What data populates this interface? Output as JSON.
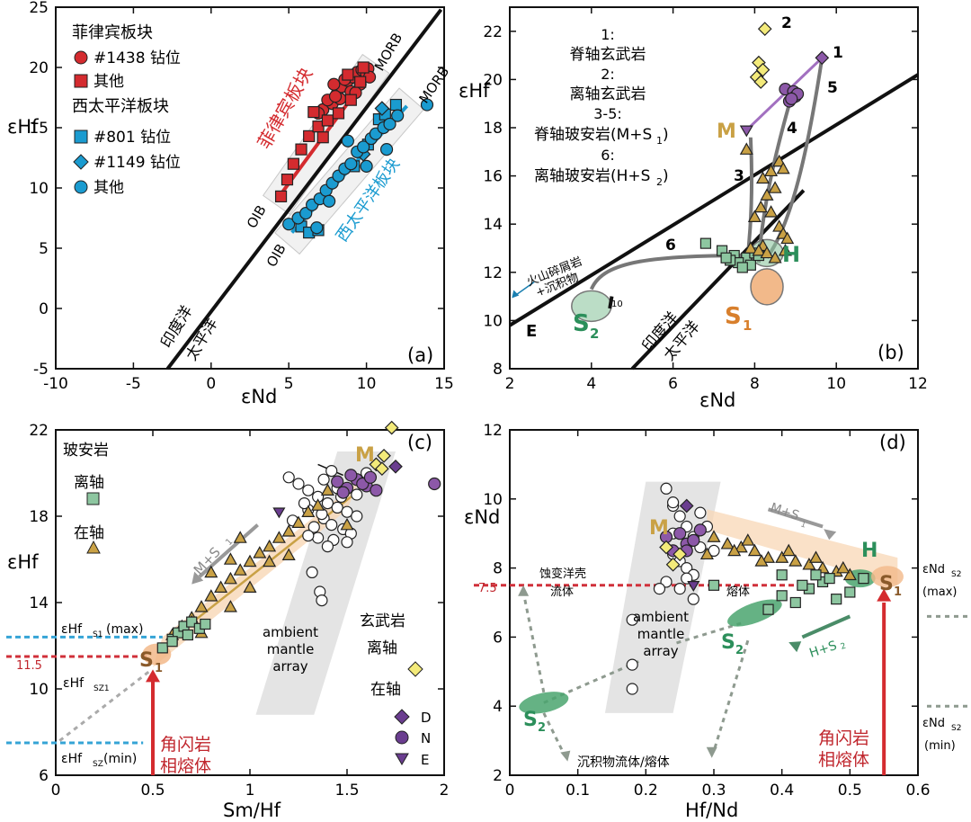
{
  "colors": {
    "axis": "#111111",
    "red": "#d42b2f",
    "red_dark": "#8a1418",
    "blue": "#1a9bd0",
    "blue_dark": "#0d5f84",
    "green": "#2c8f5b",
    "green_fill": "#8dc6a0",
    "tan": "#c9a145",
    "orange": "#f2b98a",
    "purple": "#6a3d8f",
    "purple_fill": "#8c58a8",
    "yellow": "#f3ea7a",
    "gray": "#9a9a9a",
    "white": "#ffffff",
    "dashed_red": "#d0303a",
    "dashed_blue": "#35a4d6",
    "dashed_gray": "#8e9a8f",
    "band_gray": "#e4e4e4",
    "band_orange": "#f8d7b5"
  },
  "chart_data": [
    {
      "id": "a",
      "type": "scatter",
      "panel_label": "(a)",
      "xlabel": "εNd",
      "ylabel": "εHf",
      "xlim": [
        -10,
        15
      ],
      "ylim": [
        -5,
        25
      ],
      "xticks": [
        "-10",
        "-5",
        "0",
        "5",
        "10",
        "15"
      ],
      "yticks": [
        "-5",
        "0",
        "5",
        "10",
        "15",
        "20",
        "25"
      ],
      "legend": {
        "group1_title": "菲律宾板块",
        "group1_items": [
          "#1438 钻位",
          "其他"
        ],
        "group2_title": "西太平洋板块",
        "group2_items": [
          "#801 钻位",
          "#1149 钻位",
          "其他"
        ]
      },
      "labels": {
        "indian": "印度洋",
        "pacific": "太平洋",
        "morb_upper": "MORB",
        "morb_lower": "MORB",
        "oib_upper": "OIB",
        "oib_lower": "OIB",
        "ph_plate": "菲律宾板块",
        "wp_plate": "西太平洋板块"
      },
      "boundary_line": {
        "x": [
          -2.8,
          14.8
        ],
        "y": [
          -5,
          24.8
        ]
      },
      "ph_trend": {
        "x": [
          4.5,
          10.2
        ],
        "y": [
          9.5,
          19.5
        ]
      },
      "wp_trend": {
        "x": [
          5.2,
          12.6
        ],
        "y": [
          6.3,
          16.8
        ]
      },
      "series": [
        {
          "name": "#1438 钻位",
          "marker": "circle",
          "color": "red",
          "x": [
            7.2,
            7.8,
            8.1,
            8.4,
            8.8,
            9.1,
            9.4,
            9.7,
            10.0,
            7.5,
            8.3,
            9.0,
            9.6,
            10.1,
            8.6,
            7.9,
            9.3,
            10.2,
            6.9,
            8.0
          ],
          "y": [
            16.5,
            17.0,
            17.8,
            18.4,
            18.9,
            19.2,
            19.6,
            19.8,
            19.5,
            17.3,
            17.4,
            18.0,
            18.6,
            19.9,
            19.0,
            18.6,
            17.9,
            19.2,
            16.2,
            17.6
          ]
        },
        {
          "name": "其他(PH)",
          "marker": "square",
          "color": "red",
          "x": [
            4.5,
            4.9,
            5.3,
            5.8,
            6.3,
            6.9,
            7.5,
            8.2,
            9.0,
            9.6,
            7.2,
            6.6,
            8.8,
            9.8
          ],
          "y": [
            9.3,
            10.7,
            12.0,
            13.2,
            14.3,
            15.1,
            15.6,
            16.2,
            17.3,
            18.8,
            14.2,
            16.3,
            19.4,
            20.0
          ]
        },
        {
          "name": "#801 钻位",
          "marker": "square",
          "color": "blue",
          "x": [
            5.8,
            6.3,
            6.9,
            9.2,
            10.1,
            10.8,
            11.2,
            11.9
          ],
          "y": [
            6.8,
            6.3,
            6.5,
            11.8,
            13.6,
            15.7,
            16.1,
            16.9
          ]
        },
        {
          "name": "#1149 钻位",
          "marker": "diamond",
          "color": "blue",
          "x": [
            9.8,
            10.4,
            11.0
          ],
          "y": [
            12.8,
            14.2,
            16.6
          ]
        },
        {
          "name": "其他(WP)",
          "marker": "circle",
          "color": "blue",
          "x": [
            5.0,
            5.6,
            6.1,
            6.5,
            7.0,
            7.4,
            7.8,
            8.2,
            8.6,
            9.0,
            9.4,
            9.8,
            10.3,
            10.6,
            11.1,
            11.5,
            12.0,
            13.9,
            6.8,
            7.6,
            8.8,
            10.0,
            11.3
          ],
          "y": [
            7.0,
            7.5,
            7.9,
            8.6,
            9.1,
            9.8,
            10.4,
            11.0,
            11.6,
            12.0,
            13.0,
            13.4,
            14.1,
            14.5,
            15.0,
            15.3,
            16.0,
            16.9,
            6.7,
            8.9,
            13.9,
            11.8,
            13.2
          ]
        }
      ]
    },
    {
      "id": "b",
      "type": "scatter",
      "panel_label": "(b)",
      "xlabel": "εNd",
      "ylabel": "εHf",
      "xlim": [
        2,
        12
      ],
      "ylim": [
        8,
        23
      ],
      "xticks": [
        "2",
        "4",
        "6",
        "8",
        "10",
        "12"
      ],
      "yticks": [
        "8",
        "10",
        "12",
        "14",
        "16",
        "18",
        "20",
        "22"
      ],
      "legend_lines": [
        "1:",
        "脊轴玄武岩",
        "2:",
        "离轴玄武岩",
        "3-5:",
        "脊轴玻安岩(M+S",
        "6:",
        "离轴玻安岩(H+S"
      ],
      "subscript": "1",
      "subscript2": "2",
      "close_paren": ")",
      "labels": {
        "indian": "印度洋",
        "pacific": "太平洋",
        "volcanic": "火山碎屑岩",
        "sediment": "+沉积物",
        "E": "E",
        "M": "M",
        "H": "H",
        "S": "S",
        "tick10": "10",
        "curve_ids": [
          "1",
          "2",
          "3",
          "4",
          "5",
          "6"
        ]
      },
      "boundary_line": {
        "x": [
          2,
          12
        ],
        "y": [
          9.8,
          20.2
        ]
      },
      "boundary2": {
        "x": [
          5.0,
          9.2
        ],
        "y": [
          8,
          15.4
        ]
      },
      "points": {
        "yellow_diamonds": {
          "x": [
            8.25,
            8.1,
            8.2,
            8.05,
            8.15
          ],
          "y": [
            22.1,
            20.7,
            20.4,
            20.1,
            19.9
          ]
        },
        "purple_circles": {
          "x": [
            8.75,
            8.95,
            9.0,
            8.85,
            9.05,
            8.9
          ],
          "y": [
            19.6,
            19.5,
            19.3,
            19.1,
            19.4,
            19.2
          ]
        },
        "tri_up": {
          "x": [
            7.8,
            8.6,
            8.7,
            8.4,
            8.2,
            8.5,
            8.3,
            8.15,
            8.0,
            8.4,
            8.6,
            8.7,
            8.8,
            8.2,
            7.9,
            8.1,
            8.3,
            8.5,
            8.75
          ],
          "y": [
            17.1,
            16.6,
            16.3,
            16.2,
            15.9,
            15.5,
            15.2,
            14.7,
            14.3,
            14.5,
            13.9,
            13.6,
            13.4,
            13.1,
            13.0,
            12.9,
            12.8,
            12.6,
            12.9
          ]
        },
        "squares": {
          "x": [
            6.8,
            7.2,
            7.5,
            7.8,
            7.6,
            7.9,
            8.0,
            7.4,
            7.7,
            8.1,
            7.3
          ],
          "y": [
            13.2,
            12.9,
            12.7,
            12.6,
            12.4,
            12.3,
            12.8,
            12.5,
            12.2,
            12.7,
            12.6
          ]
        },
        "tri_down_M": {
          "x": [
            7.8
          ],
          "y": [
            17.9
          ]
        },
        "diamond_1": {
          "x": [
            9.65
          ],
          "y": [
            20.9
          ]
        }
      }
    },
    {
      "id": "c",
      "type": "scatter",
      "panel_label": "(c)",
      "xlabel": "Sm/Hf",
      "ylabel": "εHf",
      "xlim": [
        0,
        2
      ],
      "ylim": [
        6,
        22
      ],
      "xticks": [
        "0",
        "0.5",
        "1",
        "1.5",
        "2"
      ],
      "yticks": [
        "6",
        "10",
        "14",
        "18",
        "22"
      ],
      "legend": {
        "title_bon": "玻安岩",
        "off_axis": "离轴",
        "on_axis": "在轴",
        "title_basalt": "玄武岩",
        "basalt_off": "离轴",
        "basalt_on": "在轴",
        "D": "D",
        "N": "N",
        "E": "E"
      },
      "labels": {
        "MS1": "M+S",
        "M": "M",
        "S1": "S",
        "ambient": [
          "ambient",
          "mantle",
          "array"
        ],
        "hornblende": [
          "角闪岩",
          "相熔体"
        ],
        "hf_s1_max": "εHf",
        "hf_s1_max_sub": "S1",
        "hf_s1_max_suffix": "(max)",
        "hf_sz1": "εHf",
        "hf_sz1_sub": "SZ1",
        "hf_sz_min": "εHf",
        "hf_sz_min_sub": "SZ",
        "hf_sz_min_suffix": "(min)",
        "val_115": "11.5"
      },
      "points": {
        "open_circles": {
          "x": [
            1.2,
            1.25,
            1.3,
            1.35,
            1.4,
            1.45,
            1.5,
            1.55,
            1.3,
            1.38,
            1.42,
            1.48,
            1.52,
            1.33,
            1.43,
            1.35,
            1.4,
            1.5,
            1.47,
            1.38,
            1.28,
            1.45,
            1.55,
            1.6,
            1.22,
            1.3,
            1.37,
            1.42,
            1.36,
            1.37,
            1.32
          ],
          "y": [
            19.8,
            19.5,
            19.2,
            18.9,
            18.6,
            18.4,
            18.2,
            18.0,
            18.3,
            17.9,
            17.6,
            17.4,
            17.2,
            17.5,
            16.9,
            17.0,
            16.6,
            16.8,
            18.9,
            19.7,
            18.6,
            19.3,
            19.0,
            20.0,
            17.8,
            17.1,
            18.1,
            20.1,
            14.5,
            14.1,
            15.4
          ]
        },
        "triangles": {
          "x": [
            0.6,
            0.65,
            0.7,
            0.75,
            0.8,
            0.85,
            0.9,
            0.95,
            1.0,
            1.05,
            1.1,
            1.15,
            1.2,
            1.25,
            1.3,
            1.35,
            0.9,
            1.0,
            1.1,
            0.8,
            0.7,
            1.2,
            1.5,
            0.75,
            0.9,
            0.95,
            1.4
          ],
          "y": [
            12.5,
            12.9,
            13.3,
            13.8,
            14.3,
            14.7,
            15.1,
            15.5,
            15.9,
            16.3,
            16.6,
            17.0,
            17.3,
            17.7,
            18.2,
            18.5,
            13.8,
            14.7,
            15.9,
            15.4,
            13.1,
            16.2,
            17.6,
            12.6,
            16.0,
            17.0,
            19.2
          ]
        },
        "squares": {
          "x": [
            0.55,
            0.6,
            0.63,
            0.66,
            0.7,
            0.74,
            0.77,
            0.6,
            0.68
          ],
          "y": [
            11.9,
            12.3,
            12.6,
            12.9,
            13.1,
            12.8,
            13.0,
            12.2,
            12.5
          ]
        },
        "yellow_diamonds": {
          "x": [
            1.73,
            1.69,
            1.65,
            1.68
          ],
          "y": [
            22.1,
            20.8,
            20.4,
            20.2
          ]
        },
        "purple_D": {
          "x": [
            1.75
          ],
          "y": [
            20.3
          ]
        },
        "purple_N": {
          "x": [
            1.45,
            1.5,
            1.55,
            1.6,
            1.65,
            1.52,
            1.58,
            1.48,
            1.62,
            1.95
          ],
          "y": [
            19.6,
            19.3,
            19.7,
            19.4,
            19.2,
            19.9,
            19.5,
            19.1,
            19.8,
            19.5
          ]
        },
        "purple_E": {
          "x": [
            1.15
          ],
          "y": [
            18.2
          ]
        }
      },
      "yellow_line": {
        "x": [
          0.58,
          1.52
        ],
        "y": [
          12.2,
          18.9
        ]
      },
      "dashed_levels": {
        "hf_s1_max": 12.4,
        "hf_sz1": 11.5,
        "hf_sz_min": 7.5
      }
    },
    {
      "id": "d",
      "type": "scatter",
      "panel_label": "(d)",
      "xlabel": "Hf/Nd",
      "ylabel": "εNd",
      "xlim": [
        0,
        0.6
      ],
      "ylim": [
        2,
        12
      ],
      "xticks": [
        "0",
        "0.1",
        "0.2",
        "0.3",
        "0.4",
        "0.5",
        "0.6"
      ],
      "yticks": [
        "2",
        "4",
        "6",
        "8",
        "10",
        "12"
      ],
      "labels": {
        "alt_crust": "蚀变洋壳",
        "fluid": "流体",
        "melt": "熔体",
        "val_75": "7.5",
        "ambient": [
          "ambient",
          "mantle",
          "array"
        ],
        "MS1": "M+S",
        "HS2": "H+S",
        "M": "M",
        "H": "H",
        "S": "S",
        "sediment": "沉积物流体/熔体",
        "hornblende": [
          "角闪岩",
          "相熔体"
        ],
        "end_nd_top": "εNd",
        "end_nd_top_sub": "S2",
        "end_nd_top_suffix": "(max)",
        "end_nd_bot": "εNd",
        "end_nd_bot_sub": "S2",
        "end_nd_bot_suffix": "(min)"
      },
      "points": {
        "open_circles": {
          "x": [
            0.23,
            0.24,
            0.25,
            0.26,
            0.27,
            0.28,
            0.24,
            0.25,
            0.26,
            0.27,
            0.23,
            0.22,
            0.28,
            0.29,
            0.24,
            0.26,
            0.27,
            0.25,
            0.3,
            0.18,
            0.18,
            0.18,
            0.24
          ],
          "y": [
            10.3,
            9.8,
            9.5,
            9.2,
            8.9,
            8.6,
            8.4,
            8.2,
            8.0,
            7.8,
            7.6,
            7.4,
            9.6,
            9.2,
            9.9,
            7.7,
            7.1,
            7.4,
            8.5,
            6.5,
            5.2,
            4.5,
            9.0
          ]
        },
        "triangles": {
          "x": [
            0.3,
            0.32,
            0.34,
            0.36,
            0.38,
            0.4,
            0.42,
            0.44,
            0.46,
            0.48,
            0.5,
            0.33,
            0.37,
            0.41,
            0.45,
            0.49,
            0.35,
            0.29
          ],
          "y": [
            8.9,
            8.7,
            8.6,
            8.5,
            8.3,
            8.3,
            8.2,
            8.1,
            8.0,
            7.9,
            7.8,
            8.5,
            8.2,
            8.5,
            8.3,
            8.0,
            8.8,
            8.4
          ]
        },
        "squares": {
          "x": [
            0.38,
            0.4,
            0.42,
            0.44,
            0.46,
            0.48,
            0.5,
            0.43,
            0.45,
            0.47,
            0.4,
            0.52,
            0.3
          ],
          "y": [
            6.8,
            7.2,
            7.0,
            7.4,
            7.6,
            7.1,
            7.3,
            7.5,
            7.8,
            7.7,
            7.8,
            7.7,
            7.5
          ]
        },
        "yellow_diamonds": {
          "x": [
            0.23,
            0.25,
            0.24
          ],
          "y": [
            8.6,
            8.4,
            8.1
          ]
        },
        "purple_circles": {
          "x": [
            0.23,
            0.25,
            0.26,
            0.27,
            0.28,
            0.24,
            0.26
          ],
          "y": [
            8.9,
            9.0,
            8.7,
            8.8,
            9.1,
            8.5,
            8.5
          ]
        },
        "purple_D": {
          "x": [
            0.26
          ],
          "y": [
            9.8
          ]
        },
        "purple_E": {
          "x": [
            0.27
          ],
          "y": [
            7.5
          ]
        }
      },
      "dashed_level_75": 7.5
    }
  ]
}
